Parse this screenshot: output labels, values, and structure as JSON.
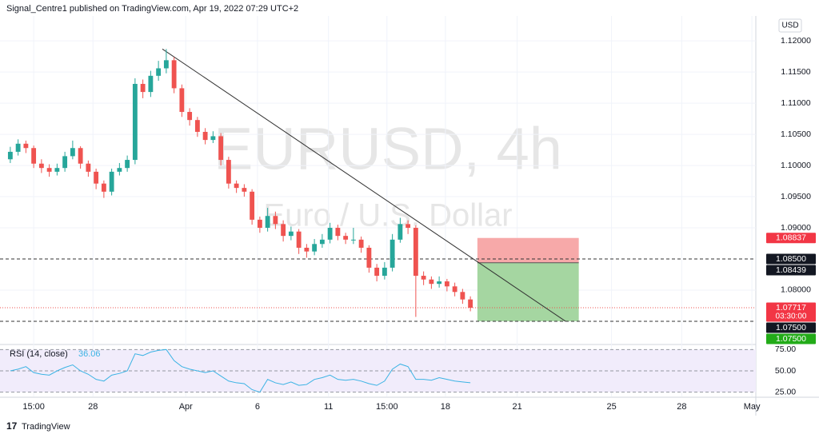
{
  "header": "Signal_Centre1 published on TradingView.com, Apr 19, 2022 07:29 UTC+2",
  "brand": "TradingView",
  "chart_data": {
    "type": "candlestick",
    "title": "EURUSD, 4h",
    "subtitle": "Euro / U.S. Dollar",
    "currency": "USD",
    "up_color": "#26a69a",
    "down_color": "#ef5350",
    "grid": true,
    "open": [
      1.101,
      1.1022,
      1.1035,
      1.1028,
      1.1003,
      1.0996,
      1.099,
      1.0996,
      1.1015,
      1.1028,
      1.1003,
      1.099,
      1.0971,
      1.0958,
      1.099,
      1.0996,
      1.1009,
      1.1131,
      1.1118,
      1.1144,
      1.1156,
      1.1169,
      1.1124,
      1.1086,
      1.1073,
      1.1054,
      1.1041,
      1.1047,
      1.1009,
      1.0971,
      1.0964,
      1.0958,
      1.0913,
      1.09,
      1.0919,
      1.0906,
      1.0887,
      1.0894,
      1.0868,
      1.0862,
      1.0874,
      1.0881,
      1.09,
      1.0887,
      1.0881,
      1.0881,
      1.0868,
      1.0836,
      1.0823,
      1.0836,
      1.0881,
      1.0906,
      1.09,
      1.0823,
      1.0817,
      1.081,
      1.0814,
      1.0806,
      1.0797,
      1.0785
    ],
    "high": [
      1.103,
      1.1042,
      1.104,
      1.1032,
      1.101,
      1.1002,
      1.1003,
      1.1022,
      1.104,
      1.1031,
      1.1008,
      1.0995,
      1.0976,
      1.0995,
      1.1004,
      1.1016,
      1.114,
      1.1138,
      1.1152,
      1.1168,
      1.1187,
      1.1174,
      1.113,
      1.1092,
      1.1078,
      1.106,
      1.1055,
      1.1052,
      1.1014,
      1.0976,
      1.097,
      1.0962,
      1.0918,
      1.0932,
      1.0926,
      1.0912,
      1.0902,
      1.0898,
      1.0874,
      1.0882,
      1.089,
      1.0908,
      1.0905,
      1.0892,
      1.09,
      1.0886,
      1.0872,
      1.0842,
      1.0845,
      1.089,
      1.0916,
      1.0912,
      1.0904,
      1.083,
      1.0822,
      1.0822,
      1.0818,
      1.0812,
      1.0802,
      1.079
    ],
    "low": [
      1.1004,
      1.1016,
      1.102,
      1.0996,
      1.0988,
      1.0982,
      1.0984,
      1.099,
      1.101,
      1.0995,
      1.0982,
      1.0962,
      1.0948,
      1.0952,
      1.0984,
      1.099,
      1.1002,
      1.1108,
      1.111,
      1.1136,
      1.1148,
      1.1116,
      1.1078,
      1.1064,
      1.1046,
      1.1034,
      1.1036,
      1.1,
      1.0963,
      1.0956,
      1.095,
      1.0905,
      1.0892,
      1.0894,
      1.0898,
      1.0878,
      1.088,
      1.0858,
      1.0852,
      1.0856,
      1.0868,
      1.0875,
      1.088,
      1.0874,
      1.0874,
      1.086,
      1.0828,
      1.0814,
      1.0817,
      1.083,
      1.0876,
      1.089,
      1.0757,
      1.0808,
      1.0802,
      1.0804,
      1.0798,
      1.079,
      1.0778,
      1.0766
    ],
    "close": [
      1.1022,
      1.1035,
      1.1028,
      1.1003,
      1.0996,
      1.099,
      1.0996,
      1.1015,
      1.1028,
      1.1003,
      1.099,
      1.0971,
      1.0958,
      1.099,
      1.0996,
      1.1009,
      1.1131,
      1.1118,
      1.1144,
      1.1156,
      1.1169,
      1.1124,
      1.1086,
      1.1073,
      1.1054,
      1.1041,
      1.1047,
      1.1009,
      1.0971,
      1.0964,
      1.0958,
      1.0913,
      1.09,
      1.0919,
      1.0906,
      1.0887,
      1.0894,
      1.0868,
      1.0862,
      1.0874,
      1.0881,
      1.09,
      1.0887,
      1.0881,
      1.0881,
      1.0868,
      1.0836,
      1.0823,
      1.0836,
      1.0881,
      1.0906,
      1.09,
      1.0823,
      1.0817,
      1.081,
      1.0814,
      1.0806,
      1.0797,
      1.0785,
      1.07717
    ],
    "xlim": [
      0,
      96
    ],
    "xticks": [
      {
        "value": 3.5,
        "label": "15:00"
      },
      {
        "value": 11.1,
        "label": "28"
      },
      {
        "value": 23.0,
        "label": "Apr"
      },
      {
        "value": 32.2,
        "label": "6"
      },
      {
        "value": 41.3,
        "label": "11"
      },
      {
        "value": 48.8,
        "label": "15:00"
      },
      {
        "value": 56.3,
        "label": "18"
      },
      {
        "value": 65.5,
        "label": "21"
      },
      {
        "value": 77.6,
        "label": "25"
      },
      {
        "value": 86.6,
        "label": "28"
      },
      {
        "value": 95.6,
        "label": "May"
      }
    ],
    "ylim": [
      1.0714,
      1.124
    ],
    "yticks": [
      {
        "value": 1.12,
        "label": "1.12000"
      },
      {
        "value": 1.115,
        "label": "1.11500"
      },
      {
        "value": 1.11,
        "label": "1.11000"
      },
      {
        "value": 1.105,
        "label": "1.10500"
      },
      {
        "value": 1.1,
        "label": "1.10000"
      },
      {
        "value": 1.095,
        "label": "1.09500"
      },
      {
        "value": 1.09,
        "label": "1.09000"
      },
      {
        "value": 1.08,
        "label": "1.08000"
      }
    ],
    "horizontal_lines": [
      1.085,
      1.075
    ],
    "last_price": 1.07717,
    "trend_line": {
      "x": [
        20,
        71.7
      ],
      "y": [
        1.1187,
        1.075
      ]
    },
    "position": {
      "x": [
        60.4,
        73.4
      ],
      "entry": 1.08439,
      "stop": 1.08837,
      "target": 1.075
    },
    "price_tags": [
      {
        "value": 1.08837,
        "label": "1.08837",
        "color": "#f23645"
      },
      {
        "value": 1.085,
        "label": "1.08500",
        "color": "#131722"
      },
      {
        "value": 1.08439,
        "label": "1.08439",
        "color": "#131722"
      },
      {
        "value": 1.07717,
        "label": "1.07717",
        "sublabel": "03:30:00",
        "color": "#f23645"
      },
      {
        "value": 1.075,
        "label": "1.07500",
        "color": "#131722"
      },
      {
        "value": 1.075,
        "label": "1.07500",
        "color": "#22ab18"
      }
    ],
    "rsi": {
      "name": "RSI (14, close)",
      "color": "#3bb3e4",
      "values": [
        50,
        52,
        55,
        48,
        46,
        45,
        50,
        54,
        57,
        50,
        46,
        40,
        38,
        45,
        47,
        50,
        70,
        68,
        72,
        74,
        75,
        62,
        55,
        52,
        50,
        48,
        50,
        44,
        38,
        36,
        35,
        28,
        25,
        40,
        36,
        34,
        37,
        33,
        34,
        40,
        42,
        45,
        40,
        39,
        40,
        38,
        35,
        33,
        38,
        52,
        58,
        55,
        40,
        40,
        39,
        42,
        40,
        38,
        37,
        36.06
      ],
      "ylim": [
        20,
        80
      ],
      "yticks": [
        {
          "value": 75,
          "label": "75.00"
        },
        {
          "value": 50,
          "label": "50.00"
        },
        {
          "value": 25,
          "label": "25.00"
        }
      ]
    }
  }
}
